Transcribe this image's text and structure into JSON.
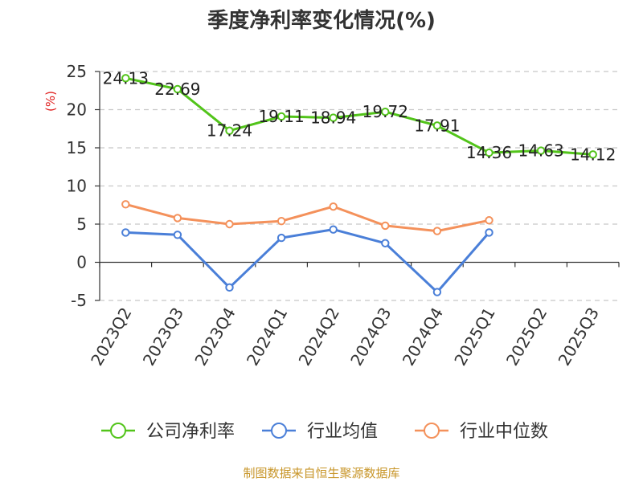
{
  "chart_data": {
    "type": "line",
    "title": "季度净利率变化情况(%)",
    "ylabel": "(%)",
    "xlabel": "",
    "ylim": [
      -5,
      25
    ],
    "yticks": [
      -5,
      0,
      5,
      10,
      15,
      20,
      25
    ],
    "categories": [
      "2023Q2",
      "2023Q3",
      "2023Q4",
      "2024Q1",
      "2024Q2",
      "2024Q3",
      "2024Q4",
      "2025Q1",
      "2025Q2",
      "2025Q3"
    ],
    "grid": true,
    "legend_position": "bottom",
    "series": [
      {
        "name": "公司净利率",
        "color": "#52c41a",
        "values": [
          24.13,
          22.69,
          17.24,
          19.11,
          18.94,
          19.72,
          17.91,
          14.36,
          14.63,
          14.12
        ],
        "labels": [
          "24.13",
          "22.69",
          "17.24",
          "19.11",
          "18.94",
          "19.72",
          "17.91",
          "14.36",
          "14.63",
          "14.12"
        ]
      },
      {
        "name": "行业均值",
        "color": "#4a7fd8",
        "values": [
          3.9,
          3.6,
          -3.3,
          3.2,
          4.3,
          2.5,
          -3.9,
          3.9,
          null,
          null
        ]
      },
      {
        "name": "行业中位数",
        "color": "#f4915b",
        "values": [
          7.6,
          5.8,
          5.0,
          5.4,
          7.3,
          4.8,
          4.1,
          5.5,
          null,
          null
        ]
      }
    ],
    "source": "制图数据来自恒生聚源数据库"
  }
}
